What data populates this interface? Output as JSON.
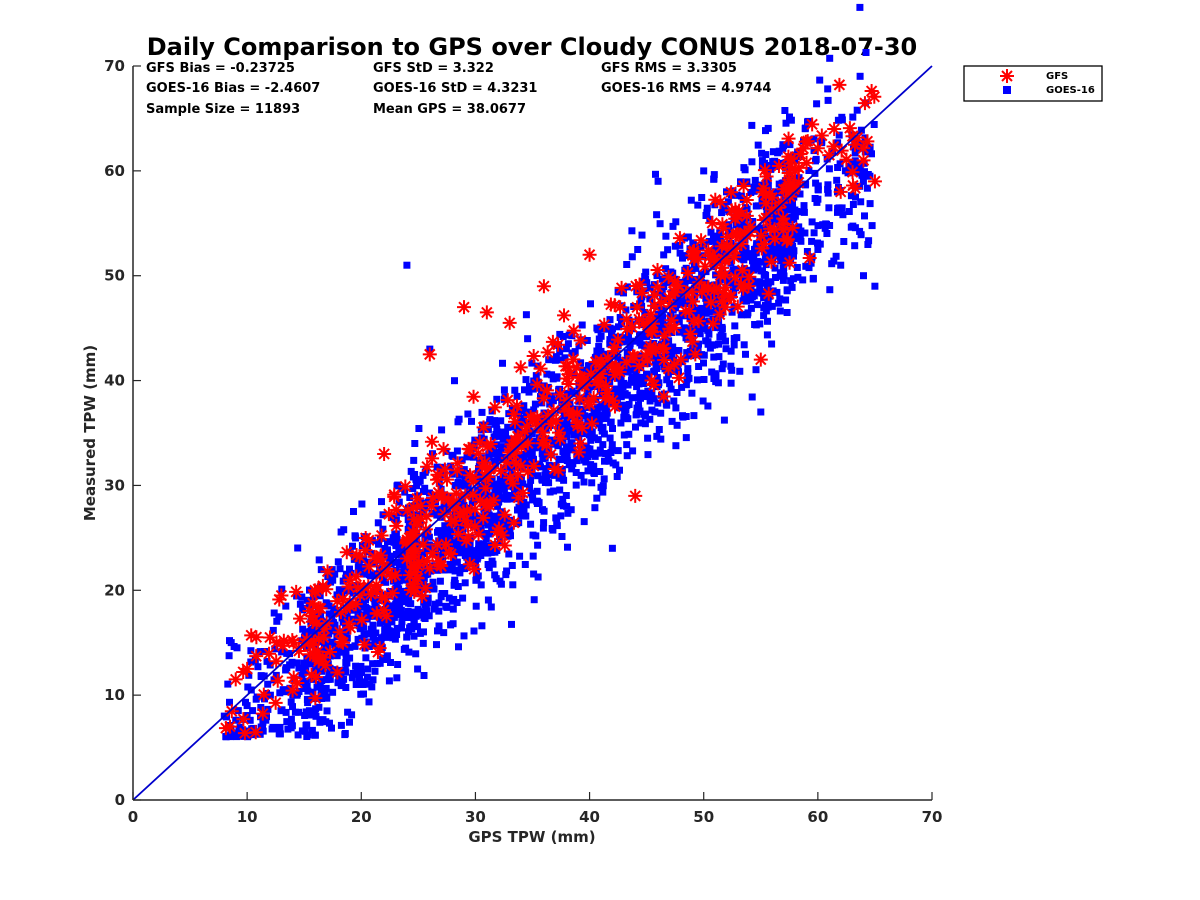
{
  "chart_data": {
    "type": "scatter",
    "title": "Daily Comparison to GPS over Cloudy CONUS 2018-07-30",
    "xlabel": "GPS TPW (mm)",
    "ylabel": "Measured TPW (mm)",
    "xlim": [
      0,
      70
    ],
    "ylim": [
      0,
      70
    ],
    "xticks": [
      "0",
      "10",
      "20",
      "30",
      "40",
      "50",
      "60",
      "70"
    ],
    "yticks": [
      "0",
      "10",
      "20",
      "30",
      "40",
      "50",
      "60",
      "70"
    ],
    "grid": false,
    "legend_position": "outside top-right",
    "stats": [
      "GFS Bias = -0.23725",
      "GFS StD = 3.322",
      "GFS RMS = 3.3305",
      "GOES-16 Bias = -2.4607",
      "GOES-16 StD = 4.3231",
      "GOES-16 RMS = 4.9744",
      "Sample Size = 11893",
      "Mean GPS = 38.0677"
    ],
    "reference_line": {
      "name": "1:1 line",
      "x": [
        0,
        70
      ],
      "y": [
        0,
        70
      ],
      "color": "#0000cc"
    },
    "series": [
      {
        "name": "GFS",
        "marker": "asterisk",
        "color": "#ff0000",
        "bias": -0.23725,
        "std": 3.322,
        "rms": 3.3305,
        "x_range": [
          8,
          65
        ],
        "points_sampled": [
          [
            8.5,
            7.0
          ],
          [
            9,
            11.5
          ],
          [
            10,
            12.5
          ],
          [
            12,
            15.5
          ],
          [
            13,
            19.5
          ],
          [
            22,
            33
          ],
          [
            26,
            42.5
          ],
          [
            29,
            47
          ],
          [
            31,
            46.5
          ],
          [
            33,
            45.5
          ],
          [
            36,
            49
          ],
          [
            40,
            52
          ],
          [
            44,
            29
          ],
          [
            48,
            42
          ],
          [
            55,
            42
          ],
          [
            58,
            60
          ],
          [
            61,
            61.5
          ],
          [
            62,
            58
          ],
          [
            64,
            61
          ],
          [
            65,
            59
          ]
        ]
      },
      {
        "name": "GOES-16",
        "marker": "square",
        "color": "#0000ff",
        "bias": -2.4607,
        "std": 4.3231,
        "rms": 4.9744,
        "x_range": [
          8,
          65
        ],
        "points_sampled": [
          [
            8,
            8
          ],
          [
            10,
            9
          ],
          [
            14,
            10
          ],
          [
            17,
            8.5
          ],
          [
            24,
            51
          ],
          [
            26,
            43
          ],
          [
            38,
            28
          ],
          [
            42,
            24
          ],
          [
            46,
            59
          ],
          [
            50,
            60
          ],
          [
            52,
            58
          ],
          [
            55,
            37
          ],
          [
            56,
            60.5
          ],
          [
            58,
            61
          ],
          [
            60,
            52.5
          ],
          [
            62,
            51
          ],
          [
            64,
            50
          ],
          [
            65,
            49
          ]
        ]
      }
    ]
  }
}
